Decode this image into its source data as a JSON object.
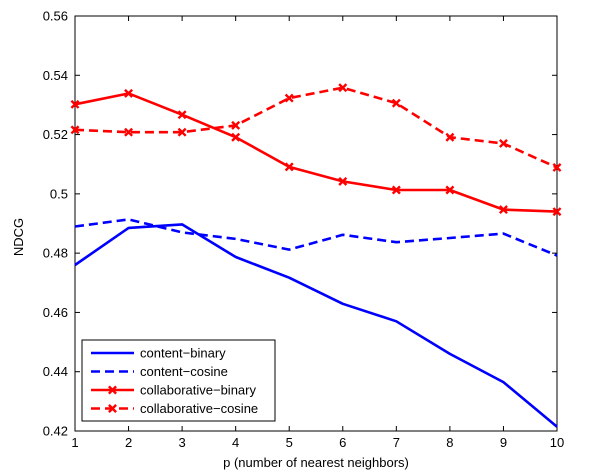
{
  "chart_data": {
    "type": "line",
    "title": "",
    "xlabel": "p (number of nearest neighbors)",
    "ylabel": "NDCG",
    "xlim": [
      1,
      10
    ],
    "ylim": [
      0.42,
      0.56
    ],
    "x": [
      1,
      2,
      3,
      4,
      5,
      6,
      7,
      8,
      9,
      10
    ],
    "xticks": [
      "1",
      "2",
      "3",
      "4",
      "5",
      "6",
      "7",
      "8",
      "9",
      "10"
    ],
    "yticks": [
      0.42,
      0.44,
      0.46,
      0.48,
      0.5,
      0.52,
      0.54,
      0.56
    ],
    "yticklabels": [
      "0.42",
      "0.44",
      "0.46",
      "0.48",
      "0.5",
      "0.52",
      "0.54",
      "0.56"
    ],
    "grid": false,
    "legend_position": "bottom-left",
    "series": [
      {
        "name": "content−binary",
        "color": "#0000ff",
        "linestyle": "solid",
        "marker": "none",
        "values": [
          0.476,
          0.4885,
          0.4897,
          0.4787,
          0.4717,
          0.4629,
          0.457,
          0.446,
          0.4365,
          0.4214
        ]
      },
      {
        "name": "content−cosine",
        "color": "#0000ff",
        "linestyle": "dashed",
        "marker": "none",
        "values": [
          0.489,
          0.4914,
          0.487,
          0.4848,
          0.4812,
          0.4862,
          0.4837,
          0.4851,
          0.4866,
          0.4792
        ]
      },
      {
        "name": "collaborative−binary",
        "color": "#ff0000",
        "linestyle": "solid",
        "marker": "x",
        "values": [
          0.5302,
          0.5339,
          0.5267,
          0.5191,
          0.5091,
          0.5042,
          0.5013,
          0.5013,
          0.4947,
          0.494
        ]
      },
      {
        "name": "collaborative−cosine",
        "color": "#ff0000",
        "linestyle": "dashed",
        "marker": "x",
        "values": [
          0.5216,
          0.5208,
          0.5208,
          0.5231,
          0.5323,
          0.5358,
          0.5306,
          0.5191,
          0.517,
          0.5089
        ]
      }
    ]
  }
}
